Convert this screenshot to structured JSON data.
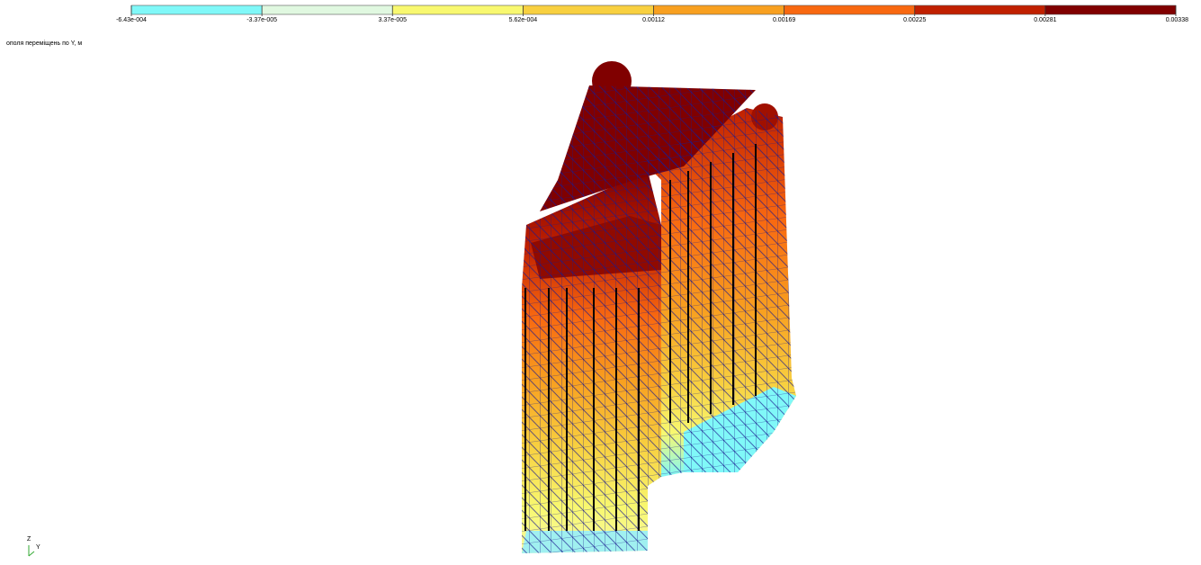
{
  "legend": {
    "ticks": [
      "-6.43e-004",
      "-3.37e-005",
      "3.37e-005",
      "5.62e-004",
      "0.00112",
      "0.00169",
      "0.00225",
      "0.00281",
      "0.00338"
    ],
    "colors": [
      "#80f8f8",
      "#e0f8e0",
      "#f8f870",
      "#f8d040",
      "#f8a020",
      "#f86810",
      "#c02000",
      "#800000"
    ]
  },
  "caption": "ополя переміщень по Y, м",
  "axes": {
    "z": "Z",
    "y": "Y"
  }
}
